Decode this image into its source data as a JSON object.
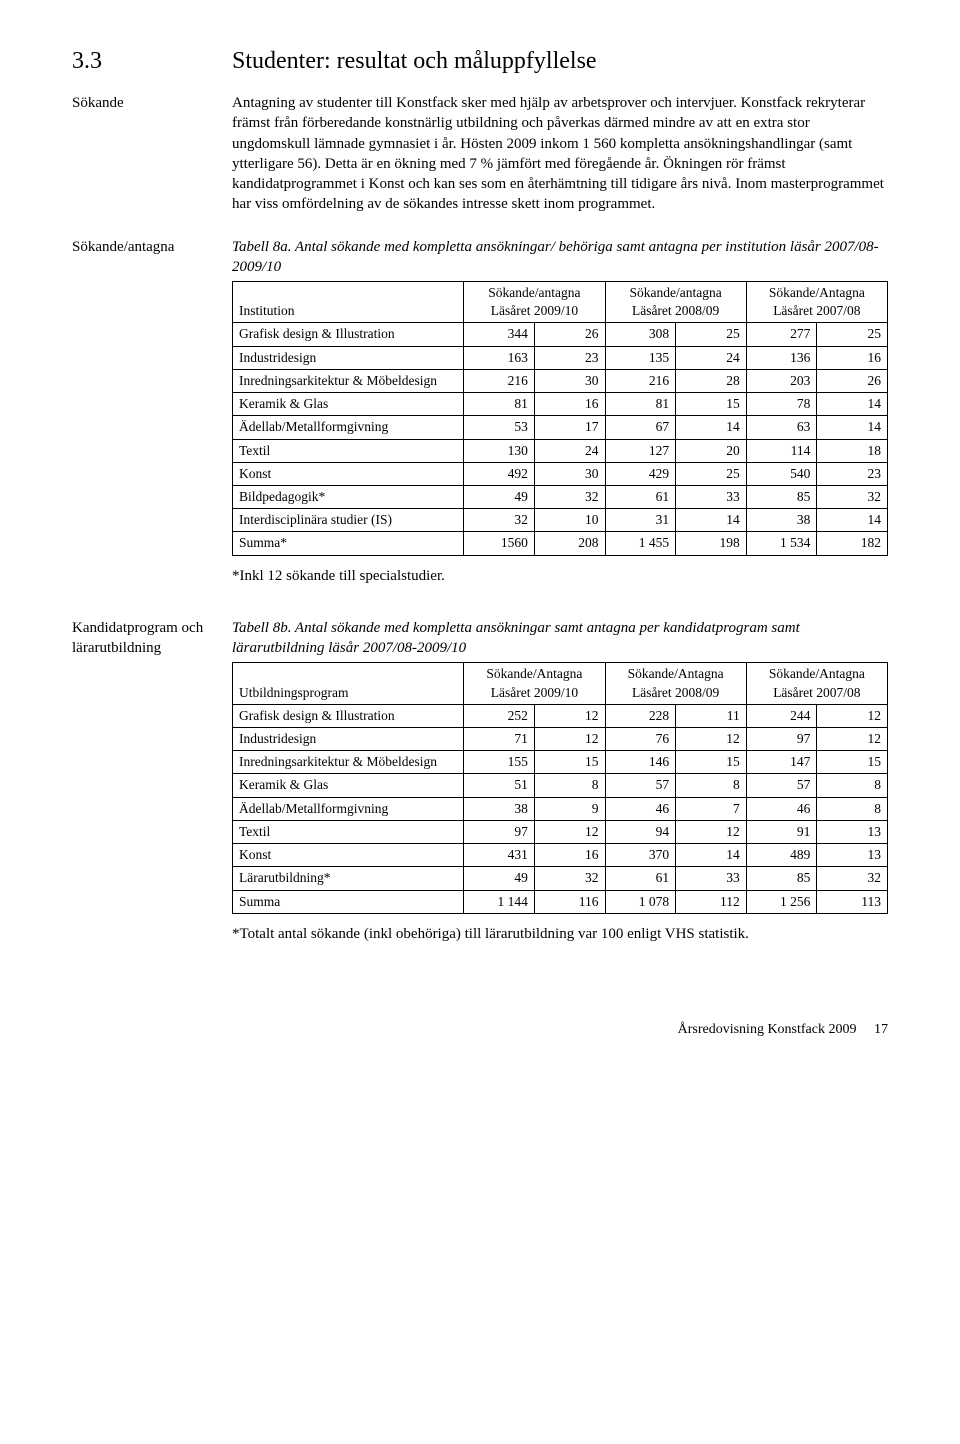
{
  "heading": {
    "num": "3.3",
    "title": "Studenter: resultat och måluppfyllelse"
  },
  "sidebar": {
    "sokande": "Sökande",
    "sokande_antagna": "Sökande/antagna",
    "kandidat": "Kandidatprogram och lärarutbildning"
  },
  "intro": {
    "p1": "Antagning av studenter till Konstfack sker med hjälp av arbetsprover och intervjuer. Konstfack rekryterar främst från förberedande konstnärlig utbildning och påverkas därmed mindre av att en extra stor ungdomskull lämnade gymnasiet i år. Hösten 2009 inkom 1 560 kompletta ansökningshandlingar (samt ytterligare 56). Detta är en ökning med 7 % jämfört med föregående år. Ökningen rör främst kandidatprogrammet i Konst och kan ses som en återhämtning till tidigare års nivå. Inom masterprogrammet har viss omfördelning av de sökandes intresse skett inom programmet."
  },
  "table8a": {
    "caption": "Tabell 8a. Antal sökande med kompletta ansökningar/ behöriga samt antagna per institution läsår 2007/08-2009/10",
    "colgroups": {
      "h1": "Sökande/antagna",
      "h2": "Sökande/antagna",
      "h3": "Sökande/Antagna",
      "sub1": "Läsåret 2009/10",
      "sub2": "Läsåret 2008/09",
      "sub3": "Läsåret 2007/08",
      "rowhead": "Institution"
    },
    "rows": [
      {
        "label": "Grafisk design & Illustration",
        "v": [
          "344",
          "26",
          "308",
          "25",
          "277",
          "25"
        ]
      },
      {
        "label": "Industridesign",
        "v": [
          "163",
          "23",
          "135",
          "24",
          "136",
          "16"
        ]
      },
      {
        "label": "Inredningsarkitektur & Möbeldesign",
        "v": [
          "216",
          "30",
          "216",
          "28",
          "203",
          "26"
        ]
      },
      {
        "label": "Keramik & Glas",
        "v": [
          "81",
          "16",
          "81",
          "15",
          "78",
          "14"
        ]
      },
      {
        "label": "Ädellab/Metallformgivning",
        "v": [
          "53",
          "17",
          "67",
          "14",
          "63",
          "14"
        ]
      },
      {
        "label": "Textil",
        "v": [
          "130",
          "24",
          "127",
          "20",
          "114",
          "18"
        ]
      },
      {
        "label": "Konst",
        "v": [
          "492",
          "30",
          "429",
          "25",
          "540",
          "23"
        ]
      },
      {
        "label": "Bildpedagogik*",
        "v": [
          "49",
          "32",
          "61",
          "33",
          "85",
          "32"
        ]
      },
      {
        "label": "Interdisciplinära studier (IS)",
        "v": [
          "32",
          "10",
          "31",
          "14",
          "38",
          "14"
        ]
      }
    ],
    "sum": {
      "label": "Summa*",
      "v": [
        "1560",
        "208",
        "1 455",
        "198",
        "1 534",
        "182"
      ]
    },
    "footnote": "*Inkl 12 sökande till specialstudier."
  },
  "table8b": {
    "caption": "Tabell 8b.  Antal sökande med kompletta ansökningar samt antagna per kandidatprogram samt lärarutbildning läsår 2007/08-2009/10",
    "colgroups": {
      "h1": "Sökande/Antagna",
      "h2": "Sökande/Antagna",
      "h3": "Sökande/Antagna",
      "sub1": "Läsåret 2009/10",
      "sub2": "Läsåret 2008/09",
      "sub3": "Läsåret 2007/08",
      "rowhead": "Utbildningsprogram"
    },
    "rows": [
      {
        "label": "Grafisk design & Illustration",
        "v": [
          "252",
          "12",
          "228",
          "11",
          "244",
          "12"
        ]
      },
      {
        "label": "Industridesign",
        "v": [
          "71",
          "12",
          "76",
          "12",
          "97",
          "12"
        ]
      },
      {
        "label": "Inredningsarkitektur & Möbeldesign",
        "v": [
          "155",
          "15",
          "146",
          "15",
          "147",
          "15"
        ]
      },
      {
        "label": "Keramik & Glas",
        "v": [
          "51",
          "8",
          "57",
          "8",
          "57",
          "8"
        ]
      },
      {
        "label": "Ädellab/Metallformgivning",
        "v": [
          "38",
          "9",
          "46",
          "7",
          "46",
          "8"
        ]
      },
      {
        "label": "Textil",
        "v": [
          "97",
          "12",
          "94",
          "12",
          "91",
          "13"
        ]
      },
      {
        "label": "Konst",
        "v": [
          "431",
          "16",
          "370",
          "14",
          "489",
          "13"
        ]
      },
      {
        "label": "Lärarutbildning*",
        "v": [
          "49",
          "32",
          "61",
          "33",
          "85",
          "32"
        ]
      }
    ],
    "sum": {
      "label": "Summa",
      "v": [
        "1 144",
        "116",
        "1 078",
        "112",
        "1 256",
        "113"
      ]
    },
    "footnote": "*Totalt antal sökande (inkl obehöriga) till lärarutbildning var 100 enligt VHS statistik."
  },
  "footer": {
    "left": "Årsredovisning Konstfack 2009",
    "page": "17"
  }
}
